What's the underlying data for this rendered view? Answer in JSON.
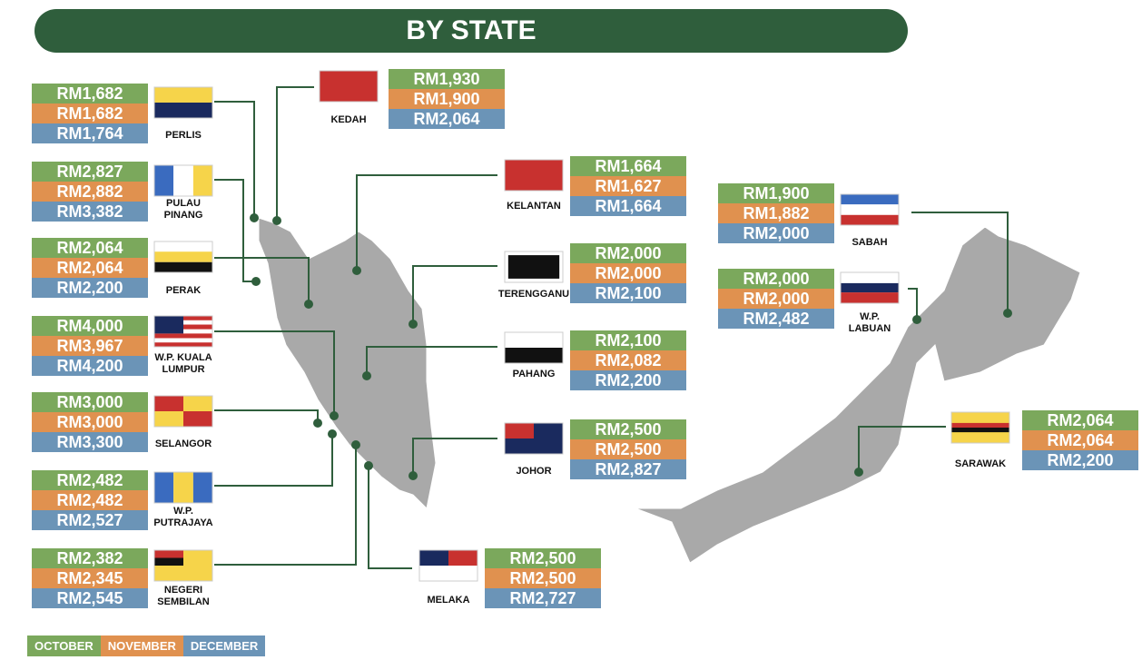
{
  "title": "BY STATE",
  "states": [
    {
      "name": "PERLIS",
      "values": [
        "RM1,682",
        "RM1,682",
        "RM1,764"
      ]
    },
    {
      "name": "KEDAH",
      "values": [
        "RM1,930",
        "RM1,900",
        "RM2,064"
      ]
    },
    {
      "name": "PULAU PINANG",
      "values": [
        "RM2,827",
        "RM2,882",
        "RM3,382"
      ]
    },
    {
      "name": "KELANTAN",
      "values": [
        "RM1,664",
        "RM1,627",
        "RM1,664"
      ]
    },
    {
      "name": "PERAK",
      "values": [
        "RM2,064",
        "RM2,064",
        "RM2,200"
      ]
    },
    {
      "name": "TERENGGANU",
      "values": [
        "RM2,000",
        "RM2,000",
        "RM2,100"
      ]
    },
    {
      "name": "W.P. KUALA LUMPUR",
      "values": [
        "RM4,000",
        "RM3,967",
        "RM4,200"
      ]
    },
    {
      "name": "PAHANG",
      "values": [
        "RM2,100",
        "RM2,082",
        "RM2,200"
      ]
    },
    {
      "name": "SELANGOR",
      "values": [
        "RM3,000",
        "RM3,000",
        "RM3,300"
      ]
    },
    {
      "name": "JOHOR",
      "values": [
        "RM2,500",
        "RM2,500",
        "RM2,827"
      ]
    },
    {
      "name": "W.P. PUTRAJAYA",
      "values": [
        "RM2,482",
        "RM2,482",
        "RM2,527"
      ]
    },
    {
      "name": "NEGERI SEMBILAN",
      "values": [
        "RM2,382",
        "RM2,345",
        "RM2,545"
      ]
    },
    {
      "name": "MELAKA",
      "values": [
        "RM2,500",
        "RM2,500",
        "RM2,727"
      ]
    },
    {
      "name": "SABAH",
      "values": [
        "RM1,900",
        "RM1,882",
        "RM2,000"
      ]
    },
    {
      "name": "W.P. LABUAN",
      "values": [
        "RM2,000",
        "RM2,000",
        "RM2,482"
      ]
    },
    {
      "name": "SARAWAK",
      "values": [
        "RM2,064",
        "RM2,064",
        "RM2,200"
      ]
    }
  ],
  "legend": [
    "OCTOBER",
    "NOVEMBER",
    "DECEMBER"
  ]
}
